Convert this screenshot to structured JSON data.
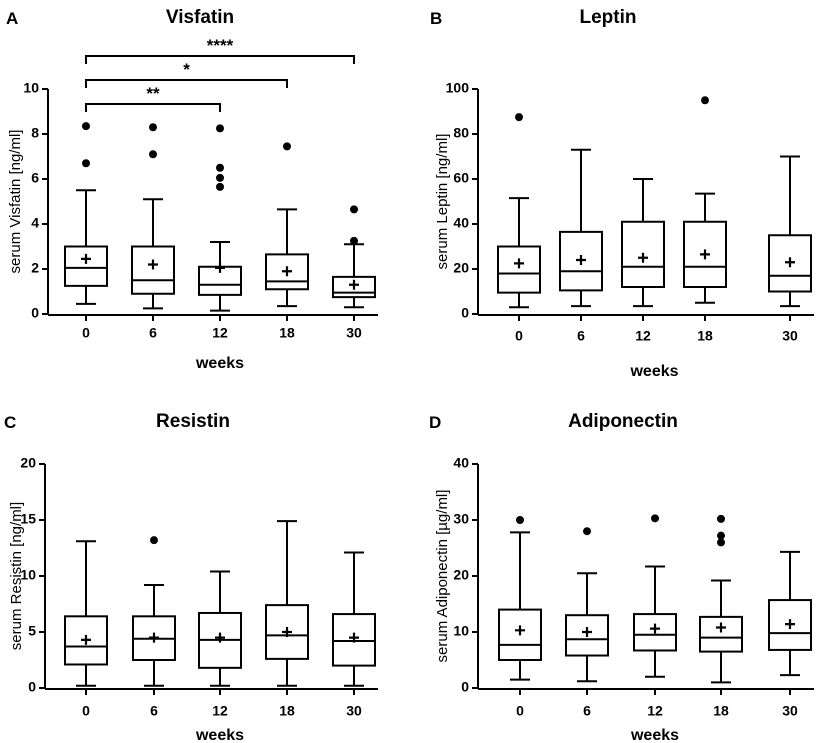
{
  "chart_data": [
    {
      "type": "box",
      "panel_letter": "A",
      "title": "Visfatin",
      "xlabel": "weeks",
      "ylabel": "serum Visfatin [ng/ml]",
      "ylim": [
        0,
        10
      ],
      "yticks": [
        0,
        2,
        4,
        6,
        8,
        10
      ],
      "categories": [
        "0",
        "6",
        "12",
        "18",
        "30"
      ],
      "boxes": [
        {
          "whisker_low": 0.45,
          "q1": 1.25,
          "median": 2.05,
          "q3": 3.0,
          "whisker_high": 5.5,
          "mean": 2.45,
          "outliers": [
            6.7,
            8.35
          ]
        },
        {
          "whisker_low": 0.25,
          "q1": 0.9,
          "median": 1.5,
          "q3": 3.0,
          "whisker_high": 5.1,
          "mean": 2.2,
          "outliers": [
            7.1,
            8.3
          ]
        },
        {
          "whisker_low": 0.15,
          "q1": 0.85,
          "median": 1.3,
          "q3": 2.1,
          "whisker_high": 3.2,
          "mean": 2.05,
          "outliers": [
            5.65,
            6.05,
            6.5,
            8.25
          ]
        },
        {
          "whisker_low": 0.35,
          "q1": 1.1,
          "median": 1.45,
          "q3": 2.65,
          "whisker_high": 4.65,
          "mean": 1.9,
          "outliers": [
            7.45
          ]
        },
        {
          "whisker_low": 0.3,
          "q1": 0.75,
          "median": 0.95,
          "q3": 1.65,
          "whisker_high": 3.1,
          "mean": 1.3,
          "outliers": [
            3.25,
            4.65
          ]
        }
      ],
      "significance": [
        {
          "from": "0",
          "to": "12",
          "label": "**"
        },
        {
          "from": "0",
          "to": "18",
          "label": "*"
        },
        {
          "from": "0",
          "to": "30",
          "label": "****"
        }
      ]
    },
    {
      "type": "box",
      "panel_letter": "B",
      "title": "Leptin",
      "xlabel": "weeks",
      "ylabel": "serum Leptin [ng/ml]",
      "ylim": [
        0,
        100
      ],
      "yticks": [
        0,
        20,
        40,
        60,
        80,
        100
      ],
      "categories": [
        "0",
        "6",
        "12",
        "18",
        "30"
      ],
      "boxes": [
        {
          "whisker_low": 3,
          "q1": 9.5,
          "median": 18,
          "q3": 30,
          "whisker_high": 51.5,
          "mean": 22.5,
          "outliers": [
            87.5
          ]
        },
        {
          "whisker_low": 3.5,
          "q1": 10.5,
          "median": 19,
          "q3": 36.5,
          "whisker_high": 73,
          "mean": 24,
          "outliers": []
        },
        {
          "whisker_low": 3.5,
          "q1": 12,
          "median": 21,
          "q3": 41,
          "whisker_high": 60,
          "mean": 25,
          "outliers": []
        },
        {
          "whisker_low": 5,
          "q1": 12,
          "median": 21,
          "q3": 41,
          "whisker_high": 53.5,
          "mean": 26.5,
          "outliers": [
            95
          ]
        },
        {
          "whisker_low": 3.5,
          "q1": 10,
          "median": 17,
          "q3": 35,
          "whisker_high": 70,
          "mean": 23,
          "outliers": []
        }
      ],
      "significance": []
    },
    {
      "type": "box",
      "panel_letter": "C",
      "title": "Resistin",
      "xlabel": "weeks",
      "ylabel": "serum Resistin [ng/ml]",
      "ylim": [
        0,
        20
      ],
      "yticks": [
        0,
        5,
        10,
        15,
        20
      ],
      "categories": [
        "0",
        "6",
        "12",
        "18",
        "30"
      ],
      "boxes": [
        {
          "whisker_low": 0.2,
          "q1": 2.1,
          "median": 3.7,
          "q3": 6.4,
          "whisker_high": 13.1,
          "mean": 4.3,
          "outliers": []
        },
        {
          "whisker_low": 0.2,
          "q1": 2.5,
          "median": 4.4,
          "q3": 6.4,
          "whisker_high": 9.2,
          "mean": 4.5,
          "outliers": [
            13.2
          ]
        },
        {
          "whisker_low": 0.2,
          "q1": 1.8,
          "median": 4.3,
          "q3": 6.7,
          "whisker_high": 10.4,
          "mean": 4.5,
          "outliers": []
        },
        {
          "whisker_low": 0.2,
          "q1": 2.6,
          "median": 4.7,
          "q3": 7.4,
          "whisker_high": 14.9,
          "mean": 5.0,
          "outliers": []
        },
        {
          "whisker_low": 0.2,
          "q1": 2.0,
          "median": 4.2,
          "q3": 6.6,
          "whisker_high": 12.1,
          "mean": 4.5,
          "outliers": []
        }
      ],
      "significance": []
    },
    {
      "type": "box",
      "panel_letter": "D",
      "title": "Adiponectin",
      "xlabel": "weeks",
      "ylabel": "serum Adiponectin [µg/ml]",
      "ylim": [
        0,
        40
      ],
      "yticks": [
        0,
        10,
        20,
        30,
        40
      ],
      "categories": [
        "0",
        "6",
        "12",
        "18",
        "30"
      ],
      "boxes": [
        {
          "whisker_low": 1.5,
          "q1": 5,
          "median": 7.7,
          "q3": 14,
          "whisker_high": 27.8,
          "mean": 10.3,
          "outliers": [
            30
          ]
        },
        {
          "whisker_low": 1.2,
          "q1": 5.8,
          "median": 8.7,
          "q3": 13,
          "whisker_high": 20.5,
          "mean": 10,
          "outliers": [
            28
          ]
        },
        {
          "whisker_low": 2,
          "q1": 6.7,
          "median": 9.5,
          "q3": 13.2,
          "whisker_high": 21.7,
          "mean": 10.6,
          "outliers": [
            30.3
          ]
        },
        {
          "whisker_low": 1,
          "q1": 6.5,
          "median": 9,
          "q3": 12.7,
          "whisker_high": 19.2,
          "mean": 10.8,
          "outliers": [
            26,
            27.2,
            30.2
          ]
        },
        {
          "whisker_low": 2.3,
          "q1": 6.8,
          "median": 9.8,
          "q3": 15.7,
          "whisker_high": 24.3,
          "mean": 11.4,
          "outliers": []
        }
      ],
      "significance": []
    }
  ]
}
